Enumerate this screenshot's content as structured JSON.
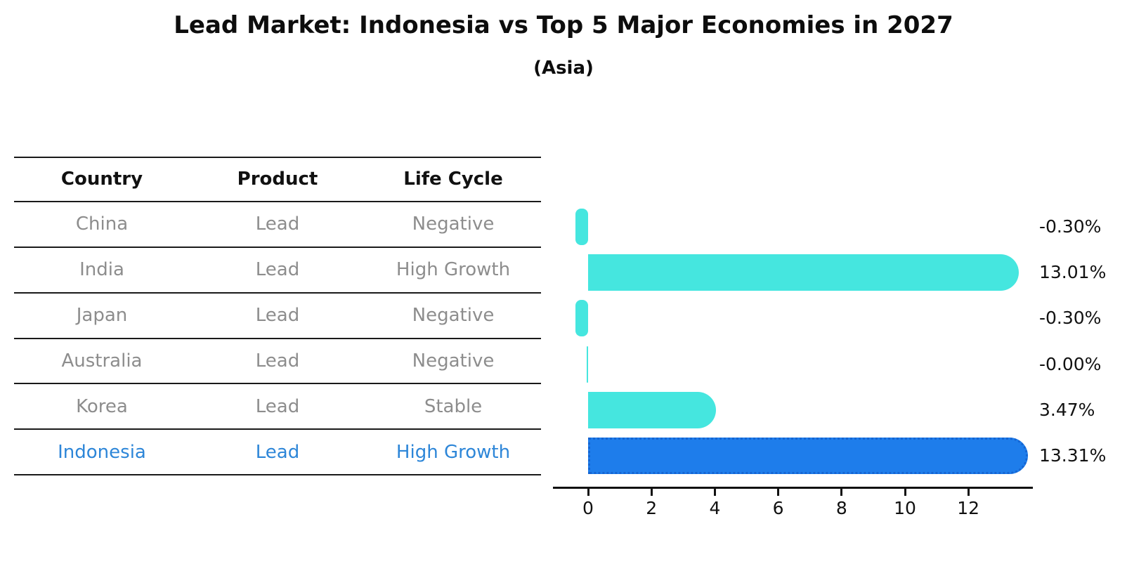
{
  "title": "Lead Market: Indonesia vs Top 5 Major Economies in 2027",
  "subtitle": "(Asia)",
  "table": {
    "headers": [
      "Country",
      "Product",
      "Life Cycle"
    ],
    "rows": [
      {
        "country": "China",
        "product": "Lead",
        "life_cycle": "Negative"
      },
      {
        "country": "India",
        "product": "Lead",
        "life_cycle": "High Growth"
      },
      {
        "country": "Japan",
        "product": "Lead",
        "life_cycle": "Negative"
      },
      {
        "country": "Australia",
        "product": "Lead",
        "life_cycle": "Negative"
      },
      {
        "country": "Korea",
        "product": "Lead",
        "life_cycle": "Stable"
      },
      {
        "country": "Indonesia",
        "product": "Lead",
        "life_cycle": "High Growth"
      }
    ],
    "highlight_row": "Indonesia"
  },
  "chart_data": {
    "type": "bar",
    "orientation": "horizontal",
    "categories": [
      "China",
      "India",
      "Japan",
      "Australia",
      "Korea",
      "Indonesia"
    ],
    "values": [
      -0.3,
      13.01,
      -0.3,
      -0.0,
      3.47,
      13.31
    ],
    "value_labels": [
      "-0.30%",
      "13.01%",
      "-0.30%",
      "-0.00%",
      "3.47%",
      "13.31%"
    ],
    "x_ticks": [
      "0",
      "2",
      "4",
      "6",
      "8",
      "10",
      "12"
    ],
    "x_tick_values": [
      0,
      2,
      4,
      6,
      8,
      10,
      12
    ],
    "xlim": [
      -1.1,
      14.0
    ],
    "grid": false,
    "legend": null,
    "highlight_index": 5
  },
  "colors": {
    "bar": "#45e6df",
    "highlight_bar": "#1e7deb",
    "highlight_border": "#1565d2",
    "highlight_text": "#2d86d8",
    "row_text": "#8d8d8d",
    "heading_text": "#111111",
    "axis": "#111111"
  }
}
